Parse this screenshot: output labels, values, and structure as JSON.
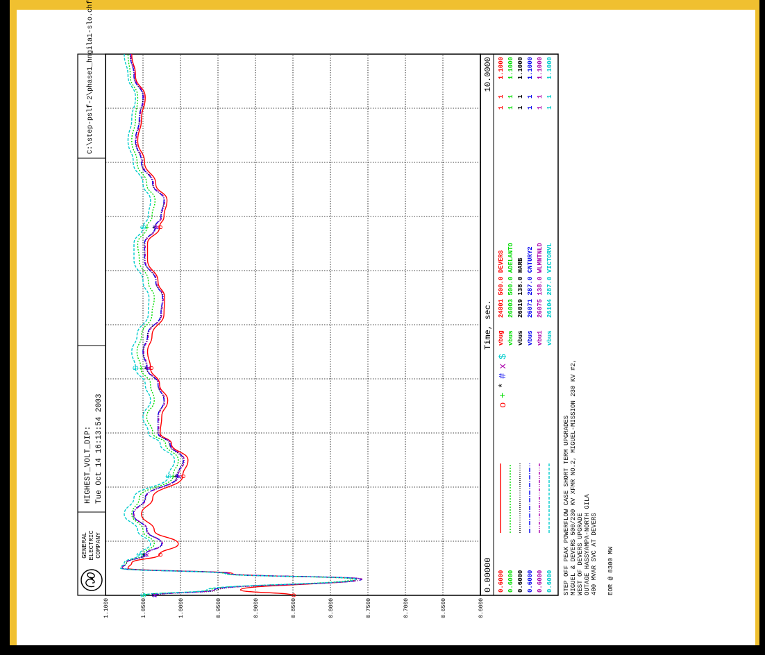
{
  "header": {
    "company": [
      "GENERAL",
      "ELECTRIC",
      "COMPANY"
    ],
    "logo": "ge-monogram",
    "case_title": "HIGHEST_VOLT_DIP:",
    "date": "Tue Oct 14 16:13:54 2003",
    "file": "C:\\step-pslf-2\\phase1_hngila1-slo.chf"
  },
  "xaxis": {
    "min_label": "0.00000",
    "max_label": "10.0000",
    "label": "Time, sec."
  },
  "notes": [
    "STEP OFF PEAK POWERFLOW CASE SHORT TERM UPGRADES",
    "MIGUEL & DEVERS 500/230 KV XFMR NO.2, MIGUEL-MISSION 230 KV #2,",
    "WEST OF DEVERS UPGRADE",
    "OUTAGE HASSYAMPA-NORTH GILA",
    "400 MVAR SVC AT DEVERS",
    "",
    "EOR @ 8300 MW"
  ],
  "chart_data": {
    "type": "line",
    "title": "HIGHEST_VOLT_DIP:",
    "xlabel": "Time, sec.",
    "ylabel": "",
    "xlim": [
      0,
      10
    ],
    "ylim": [
      0.6,
      1.1
    ],
    "yticks": [
      "0.6000",
      "0.6500",
      "0.7000",
      "0.7500",
      "0.8000",
      "0.8500",
      "0.9000",
      "0.9500",
      "1.0000",
      "1.0500",
      "1.1000"
    ],
    "grid": true,
    "x": [
      0,
      0.1,
      0.3,
      0.4,
      0.5,
      0.6,
      0.75,
      0.95,
      1.2,
      1.5,
      1.8,
      2.2,
      2.5,
      2.8,
      3.0,
      3.3,
      3.6,
      3.9,
      4.2,
      4.5,
      4.8,
      5.2,
      5.5,
      5.8,
      6.2,
      6.5,
      6.8,
      7.0,
      7.3,
      7.6,
      8.0,
      8.4,
      8.8,
      9.2,
      9.6,
      10.0
    ],
    "series": [
      {
        "name": "24801 500.0 DEVERS",
        "code": "vbug",
        "marker": "o",
        "color": "#ff0000",
        "min": "0.6000",
        "max": "1.1000",
        "c1": "1",
        "c2": "1",
        "values": [
          0.85,
          0.92,
          0.765,
          0.93,
          1.07,
          1.065,
          1.028,
          1.003,
          1.035,
          1.052,
          1.037,
          0.997,
          0.99,
          1.012,
          1.027,
          1.025,
          1.017,
          1.028,
          1.04,
          1.044,
          1.038,
          1.022,
          1.021,
          1.03,
          1.044,
          1.044,
          1.028,
          1.022,
          1.018,
          1.033,
          1.048,
          1.057,
          1.052,
          1.047,
          1.06,
          1.065
        ]
      },
      {
        "name": "26003 500.0 ADELANTO",
        "code": "vbus",
        "marker": "+",
        "color": "#00dd00",
        "min": "0.6000",
        "max": "1.1000",
        "c1": "1",
        "c2": "1",
        "values": [
          1.05,
          0.96,
          0.77,
          0.94,
          1.078,
          1.072,
          1.05,
          1.035,
          1.05,
          1.065,
          1.055,
          1.01,
          1.003,
          1.02,
          1.037,
          1.045,
          1.035,
          1.04,
          1.053,
          1.058,
          1.052,
          1.038,
          1.035,
          1.043,
          1.055,
          1.057,
          1.045,
          1.038,
          1.034,
          1.045,
          1.058,
          1.065,
          1.06,
          1.057,
          1.067,
          1.07
        ]
      },
      {
        "name": "26019 138.0 HARB",
        "code": "vbus",
        "marker": "*",
        "color": "#000000",
        "min": "0.6000",
        "max": "1.1000",
        "c1": "1",
        "c2": "1",
        "values": [
          1.035,
          0.95,
          0.758,
          0.935,
          1.078,
          1.072,
          1.047,
          1.025,
          1.045,
          1.063,
          1.047,
          1.005,
          0.997,
          1.015,
          1.03,
          1.03,
          1.022,
          1.03,
          1.045,
          1.05,
          1.044,
          1.026,
          1.024,
          1.033,
          1.048,
          1.048,
          1.034,
          1.026,
          1.022,
          1.037,
          1.052,
          1.06,
          1.055,
          1.05,
          1.062,
          1.067
        ]
      },
      {
        "name": "26071 287.0 CNTURY2",
        "code": "vbus",
        "marker": "#",
        "color": "#0000ee",
        "min": "0.6000",
        "max": "1.1000",
        "c1": "1",
        "c2": "1",
        "values": [
          1.035,
          0.955,
          0.758,
          0.935,
          1.078,
          1.072,
          1.047,
          1.025,
          1.045,
          1.063,
          1.047,
          1.004,
          0.996,
          1.014,
          1.03,
          1.03,
          1.022,
          1.03,
          1.045,
          1.05,
          1.044,
          1.026,
          1.024,
          1.033,
          1.048,
          1.048,
          1.034,
          1.026,
          1.022,
          1.037,
          1.052,
          1.06,
          1.055,
          1.05,
          1.062,
          1.067
        ]
      },
      {
        "name": "26075 138.0 WLMNTNLD",
        "code": "vbu1",
        "marker": "x",
        "color": "#aa00aa",
        "min": "0.6000",
        "max": "1.1000",
        "c1": "1",
        "c2": "1",
        "values": [
          1.035,
          0.955,
          0.758,
          0.935,
          1.078,
          1.072,
          1.046,
          1.024,
          1.044,
          1.062,
          1.046,
          1.003,
          0.995,
          1.013,
          1.029,
          1.029,
          1.021,
          1.029,
          1.044,
          1.049,
          1.043,
          1.025,
          1.023,
          1.032,
          1.047,
          1.047,
          1.033,
          1.025,
          1.021,
          1.036,
          1.051,
          1.059,
          1.054,
          1.049,
          1.061,
          1.066
        ]
      },
      {
        "name": "26104 287.0 VICTORVL",
        "code": "vbus",
        "marker": "$",
        "color": "#00cccc",
        "min": "0.6000",
        "max": "1.1000",
        "c1": "1",
        "c2": "1",
        "values": [
          1.05,
          0.965,
          0.765,
          0.94,
          1.08,
          1.075,
          1.055,
          1.04,
          1.057,
          1.075,
          1.062,
          1.016,
          1.008,
          1.027,
          1.043,
          1.05,
          1.04,
          1.047,
          1.06,
          1.065,
          1.058,
          1.043,
          1.042,
          1.05,
          1.062,
          1.062,
          1.05,
          1.043,
          1.04,
          1.05,
          1.063,
          1.07,
          1.065,
          1.06,
          1.07,
          1.075
        ]
      }
    ]
  },
  "colors": {
    "frame": "#f0c030",
    "paper": "#ffffff",
    "grid": "#000000"
  }
}
